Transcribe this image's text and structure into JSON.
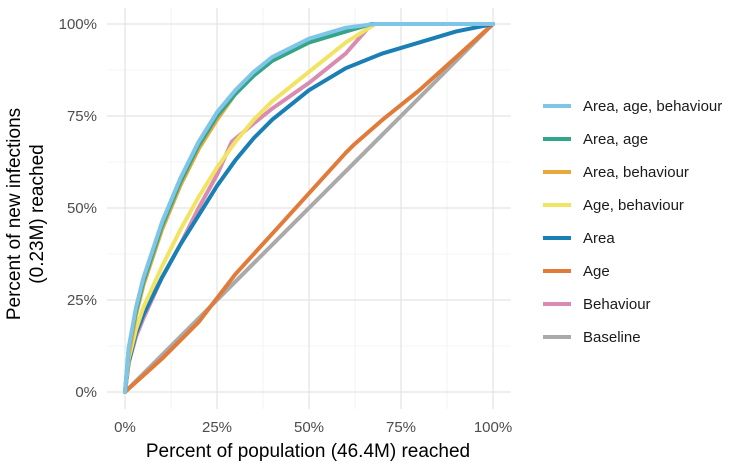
{
  "chart_data": {
    "type": "line",
    "xlabel": "Percent of population (46.4M) reached",
    "ylabel_lines": [
      "Percent of new infections",
      "(0.23M) reached"
    ],
    "xlim": [
      0,
      100
    ],
    "ylim": [
      0,
      100
    ],
    "x_ticks": [
      0,
      25,
      50,
      75,
      100
    ],
    "y_ticks": [
      0,
      25,
      50,
      75,
      100
    ],
    "x_tick_labels": [
      "0%",
      "25%",
      "50%",
      "75%",
      "100%"
    ],
    "y_tick_labels": [
      "0%",
      "25%",
      "50%",
      "75%",
      "100%"
    ],
    "grid": true,
    "legend_position": "right",
    "series": [
      {
        "name": "Area, age, behaviour",
        "color": "#7ec5e8",
        "x": [
          0,
          1,
          3,
          5,
          10,
          15,
          20,
          25,
          30,
          35,
          40,
          50,
          60,
          68,
          100
        ],
        "y": [
          0,
          12,
          23,
          31,
          46,
          58,
          68,
          76,
          82,
          87,
          91,
          96,
          99,
          100,
          100
        ]
      },
      {
        "name": "Area, age",
        "color": "#33a58a",
        "x": [
          0,
          1,
          3,
          5,
          10,
          15,
          20,
          25,
          30,
          35,
          40,
          50,
          60,
          67,
          100
        ],
        "y": [
          0,
          12,
          22,
          30,
          45,
          57,
          67,
          75,
          81,
          86,
          90,
          95,
          98,
          100,
          100
        ]
      },
      {
        "name": "Area, behaviour",
        "color": "#e8a93a",
        "x": [
          0,
          1,
          3,
          5,
          10,
          15,
          20,
          25,
          30,
          35,
          40,
          50,
          60,
          67,
          100
        ],
        "y": [
          0,
          10,
          21,
          29,
          44,
          56,
          66,
          74,
          81,
          86,
          90,
          95,
          98,
          100,
          100
        ]
      },
      {
        "name": "Age, behaviour",
        "color": "#f2e463",
        "x": [
          0,
          1,
          3,
          5,
          10,
          15,
          20,
          25,
          30,
          35,
          40,
          50,
          60,
          68,
          100
        ],
        "y": [
          0,
          9,
          17,
          23,
          34,
          44,
          53,
          61,
          68,
          74,
          79,
          87,
          95,
          100,
          100
        ]
      },
      {
        "name": "Area",
        "color": "#1a7fb5",
        "x": [
          0,
          1,
          3,
          5,
          10,
          15,
          20,
          25,
          30,
          35,
          40,
          50,
          60,
          70,
          80,
          90,
          100
        ],
        "y": [
          0,
          8,
          16,
          21,
          31,
          40,
          48,
          56,
          63,
          69,
          74,
          82,
          88,
          92,
          95,
          98,
          100
        ]
      },
      {
        "name": "Age",
        "color": "#e07b39",
        "x": [
          0,
          10,
          20,
          30,
          40,
          50,
          60,
          62,
          70,
          80,
          90,
          100
        ],
        "y": [
          0,
          9,
          19,
          32,
          43,
          54,
          65,
          67,
          74,
          82,
          91,
          100
        ]
      },
      {
        "name": "Behaviour",
        "color": "#d98cb2",
        "x": [
          0,
          1,
          3,
          5,
          10,
          15,
          20,
          25,
          29,
          35,
          40,
          50,
          60,
          67,
          100
        ],
        "y": [
          0,
          8,
          15,
          20,
          31,
          40,
          50,
          59,
          68,
          73,
          77,
          84,
          92,
          100,
          100
        ]
      },
      {
        "name": "Baseline",
        "color": "#aaaaaa",
        "x": [
          0,
          100
        ],
        "y": [
          0,
          100
        ]
      }
    ]
  }
}
